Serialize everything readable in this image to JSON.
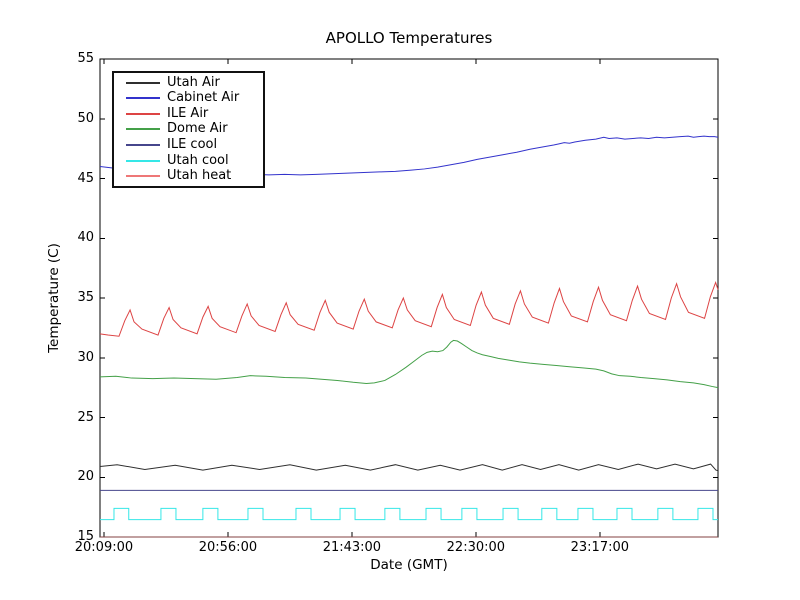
{
  "chart_data": {
    "type": "line",
    "title": "APOLLO Temperatures",
    "xlabel": "Date (GMT)",
    "ylabel": "Temperature (C)",
    "ylim": [
      15,
      55
    ],
    "y_ticks": [
      15,
      20,
      25,
      30,
      35,
      40,
      45,
      50,
      55
    ],
    "x_range_minutes": [
      0,
      234.3
    ],
    "x_ticks": [
      {
        "label": "20:09:00",
        "t": 1.5
      },
      {
        "label": "20:56:00",
        "t": 48.5
      },
      {
        "label": "21:43:00",
        "t": 95.5
      },
      {
        "label": "22:30:00",
        "t": 142.5
      },
      {
        "label": "23:17:00",
        "t": 189.5
      }
    ],
    "grid": false,
    "legend_position": "upper left",
    "axis_color": "#000000",
    "background": "#ffffff",
    "series": [
      {
        "name": "Utah Air",
        "color": "#2f2f2f",
        "points": [
          [
            0,
            20.9
          ],
          [
            6.5,
            21.05
          ],
          [
            17,
            20.65
          ],
          [
            28.5,
            21.0
          ],
          [
            39,
            20.6
          ],
          [
            50,
            21.0
          ],
          [
            60.5,
            20.65
          ],
          [
            72,
            21.05
          ],
          [
            82,
            20.6
          ],
          [
            93,
            21.0
          ],
          [
            102.5,
            20.6
          ],
          [
            112,
            21.05
          ],
          [
            120.5,
            20.6
          ],
          [
            129,
            21.0
          ],
          [
            136.5,
            20.6
          ],
          [
            145,
            21.05
          ],
          [
            152.5,
            20.6
          ],
          [
            160,
            21.05
          ],
          [
            167,
            20.65
          ],
          [
            174,
            21.05
          ],
          [
            181.5,
            20.6
          ],
          [
            189,
            21.05
          ],
          [
            196.5,
            20.65
          ],
          [
            204,
            21.1
          ],
          [
            211,
            20.7
          ],
          [
            218,
            21.1
          ],
          [
            225,
            20.7
          ],
          [
            231.5,
            21.1
          ],
          [
            233.5,
            20.6
          ],
          [
            234.3,
            20.55
          ]
        ]
      },
      {
        "name": "Cabinet Air",
        "color": "#3333cc",
        "points": [
          [
            0,
            46.0
          ],
          [
            6,
            45.85
          ],
          [
            12,
            45.75
          ],
          [
            20,
            45.65
          ],
          [
            28,
            45.55
          ],
          [
            36,
            45.5
          ],
          [
            44,
            45.45
          ],
          [
            52,
            45.4
          ],
          [
            58,
            45.35
          ],
          [
            64,
            45.3
          ],
          [
            70,
            45.35
          ],
          [
            76,
            45.3
          ],
          [
            82,
            45.35
          ],
          [
            88,
            45.4
          ],
          [
            94,
            45.45
          ],
          [
            100,
            45.5
          ],
          [
            106,
            45.55
          ],
          [
            112,
            45.6
          ],
          [
            118,
            45.7
          ],
          [
            123,
            45.8
          ],
          [
            128,
            45.95
          ],
          [
            133,
            46.15
          ],
          [
            138,
            46.35
          ],
          [
            143,
            46.6
          ],
          [
            148,
            46.8
          ],
          [
            153,
            47.0
          ],
          [
            158,
            47.2
          ],
          [
            163,
            47.45
          ],
          [
            168,
            47.65
          ],
          [
            172,
            47.8
          ],
          [
            174,
            47.9
          ],
          [
            176,
            48.0
          ],
          [
            178,
            47.95
          ],
          [
            180,
            48.05
          ],
          [
            184,
            48.2
          ],
          [
            188,
            48.3
          ],
          [
            191,
            48.45
          ],
          [
            193,
            48.35
          ],
          [
            196,
            48.4
          ],
          [
            199,
            48.3
          ],
          [
            202,
            48.35
          ],
          [
            205,
            48.4
          ],
          [
            208,
            48.35
          ],
          [
            211,
            48.45
          ],
          [
            214,
            48.4
          ],
          [
            217,
            48.45
          ],
          [
            220,
            48.5
          ],
          [
            223,
            48.55
          ],
          [
            225,
            48.45
          ],
          [
            227,
            48.5
          ],
          [
            229,
            48.55
          ],
          [
            231,
            48.5
          ],
          [
            233,
            48.5
          ],
          [
            234.3,
            48.45
          ]
        ]
      },
      {
        "name": "ILE Air",
        "color": "#dd4444",
        "points": [
          [
            0,
            32.0
          ],
          [
            3,
            31.9
          ],
          [
            7.2,
            31.8
          ],
          [
            9.4,
            33.1
          ],
          [
            11.4,
            34.0
          ],
          [
            12.9,
            33.0
          ],
          [
            15.9,
            32.4
          ],
          [
            22,
            31.9
          ],
          [
            24.2,
            33.3
          ],
          [
            26.2,
            34.2
          ],
          [
            27.7,
            33.2
          ],
          [
            30.7,
            32.5
          ],
          [
            36.8,
            32.0
          ],
          [
            39,
            33.4
          ],
          [
            41,
            34.3
          ],
          [
            42.5,
            33.3
          ],
          [
            45.5,
            32.6
          ],
          [
            51.6,
            32.1
          ],
          [
            53.8,
            33.5
          ],
          [
            55.8,
            34.5
          ],
          [
            57.3,
            33.5
          ],
          [
            60.3,
            32.7
          ],
          [
            66.4,
            32.2
          ],
          [
            68.6,
            33.6
          ],
          [
            70.6,
            34.6
          ],
          [
            72.1,
            33.6
          ],
          [
            75.1,
            32.8
          ],
          [
            81.2,
            32.3
          ],
          [
            83.4,
            33.8
          ],
          [
            85.4,
            34.8
          ],
          [
            86.9,
            33.8
          ],
          [
            89.9,
            32.9
          ],
          [
            96,
            32.4
          ],
          [
            98.2,
            33.9
          ],
          [
            100.2,
            34.9
          ],
          [
            101.7,
            33.9
          ],
          [
            104.7,
            33.0
          ],
          [
            110.8,
            32.5
          ],
          [
            113,
            34.0
          ],
          [
            115,
            35.0
          ],
          [
            116.5,
            34.0
          ],
          [
            119.5,
            33.1
          ],
          [
            125.6,
            32.6
          ],
          [
            127.8,
            34.2
          ],
          [
            129.8,
            35.3
          ],
          [
            131.3,
            34.2
          ],
          [
            134.3,
            33.2
          ],
          [
            140.4,
            32.7
          ],
          [
            142.6,
            34.4
          ],
          [
            144.6,
            35.5
          ],
          [
            146.1,
            34.4
          ],
          [
            149.1,
            33.3
          ],
          [
            155.2,
            32.8
          ],
          [
            157.4,
            34.5
          ],
          [
            159.4,
            35.6
          ],
          [
            160.9,
            34.5
          ],
          [
            163.9,
            33.4
          ],
          [
            170,
            32.9
          ],
          [
            172.2,
            34.6
          ],
          [
            174.2,
            35.8
          ],
          [
            175.7,
            34.7
          ],
          [
            178.7,
            33.5
          ],
          [
            184.8,
            33.0
          ],
          [
            187,
            34.7
          ],
          [
            189,
            35.9
          ],
          [
            190.5,
            34.8
          ],
          [
            193.5,
            33.6
          ],
          [
            199.6,
            33.1
          ],
          [
            201.8,
            34.8
          ],
          [
            203.8,
            36.0
          ],
          [
            205.3,
            34.9
          ],
          [
            208.3,
            33.7
          ],
          [
            214.4,
            33.2
          ],
          [
            216.6,
            35.0
          ],
          [
            218.6,
            36.2
          ],
          [
            220.1,
            35.1
          ],
          [
            223.1,
            33.8
          ],
          [
            229.2,
            33.3
          ],
          [
            231.4,
            35.1
          ],
          [
            233.4,
            36.3
          ],
          [
            234.3,
            35.7
          ]
        ]
      },
      {
        "name": "Dome Air",
        "color": "#44a048",
        "points": [
          [
            0,
            28.4
          ],
          [
            6,
            28.45
          ],
          [
            12,
            28.3
          ],
          [
            20,
            28.25
          ],
          [
            28,
            28.3
          ],
          [
            36,
            28.25
          ],
          [
            44,
            28.2
          ],
          [
            52,
            28.35
          ],
          [
            57,
            28.5
          ],
          [
            63,
            28.45
          ],
          [
            70,
            28.35
          ],
          [
            78,
            28.3
          ],
          [
            84,
            28.2
          ],
          [
            90,
            28.1
          ],
          [
            96,
            27.95
          ],
          [
            101,
            27.85
          ],
          [
            104,
            27.9
          ],
          [
            108,
            28.1
          ],
          [
            112,
            28.6
          ],
          [
            116,
            29.2
          ],
          [
            119,
            29.7
          ],
          [
            122,
            30.2
          ],
          [
            124,
            30.45
          ],
          [
            126,
            30.55
          ],
          [
            128,
            30.5
          ],
          [
            130,
            30.6
          ],
          [
            131.5,
            30.9
          ],
          [
            133,
            31.3
          ],
          [
            134,
            31.45
          ],
          [
            135.5,
            31.4
          ],
          [
            137,
            31.2
          ],
          [
            139,
            30.9
          ],
          [
            141,
            30.6
          ],
          [
            143,
            30.4
          ],
          [
            145,
            30.25
          ],
          [
            148,
            30.1
          ],
          [
            151,
            29.95
          ],
          [
            155,
            29.8
          ],
          [
            159,
            29.65
          ],
          [
            163,
            29.55
          ],
          [
            168,
            29.45
          ],
          [
            173,
            29.35
          ],
          [
            178,
            29.25
          ],
          [
            183,
            29.15
          ],
          [
            188,
            29.05
          ],
          [
            191,
            28.9
          ],
          [
            194,
            28.65
          ],
          [
            197,
            28.5
          ],
          [
            201,
            28.45
          ],
          [
            205,
            28.35
          ],
          [
            210,
            28.25
          ],
          [
            215,
            28.15
          ],
          [
            220,
            28.0
          ],
          [
            225,
            27.9
          ],
          [
            229,
            27.75
          ],
          [
            232,
            27.6
          ],
          [
            234.3,
            27.5
          ]
        ]
      },
      {
        "name": "ILE cool",
        "color": "#46468c",
        "points": [
          [
            0,
            18.9
          ],
          [
            234.3,
            18.9
          ]
        ]
      },
      {
        "name": "Utah cool",
        "color": "#35e7e7",
        "points": [
          [
            0,
            16.45
          ],
          [
            5.3,
            16.45
          ],
          [
            5.3,
            17.4
          ],
          [
            10.9,
            17.4
          ],
          [
            10.9,
            16.45
          ],
          [
            23.1,
            16.45
          ],
          [
            23.1,
            17.4
          ],
          [
            28.8,
            17.4
          ],
          [
            28.8,
            16.45
          ],
          [
            39.0,
            16.45
          ],
          [
            39.0,
            17.4
          ],
          [
            44.7,
            17.4
          ],
          [
            44.7,
            16.45
          ],
          [
            56.1,
            16.45
          ],
          [
            56.1,
            17.4
          ],
          [
            61.8,
            17.4
          ],
          [
            61.8,
            16.45
          ],
          [
            74.3,
            16.45
          ],
          [
            74.3,
            17.4
          ],
          [
            80.0,
            17.4
          ],
          [
            80.0,
            16.45
          ],
          [
            91.0,
            16.45
          ],
          [
            91.0,
            17.4
          ],
          [
            96.7,
            17.4
          ],
          [
            96.7,
            16.45
          ],
          [
            108.0,
            16.45
          ],
          [
            108.0,
            17.4
          ],
          [
            113.7,
            17.4
          ],
          [
            113.7,
            16.45
          ],
          [
            123.6,
            16.45
          ],
          [
            123.6,
            17.4
          ],
          [
            129.3,
            17.4
          ],
          [
            129.3,
            16.45
          ],
          [
            137.2,
            16.45
          ],
          [
            137.2,
            17.4
          ],
          [
            142.9,
            17.4
          ],
          [
            142.9,
            16.45
          ],
          [
            152.8,
            16.45
          ],
          [
            152.8,
            17.4
          ],
          [
            158.5,
            17.4
          ],
          [
            158.5,
            16.45
          ],
          [
            167.5,
            16.45
          ],
          [
            167.5,
            17.4
          ],
          [
            173.2,
            17.4
          ],
          [
            173.2,
            16.45
          ],
          [
            181.2,
            16.45
          ],
          [
            181.2,
            17.4
          ],
          [
            186.9,
            17.4
          ],
          [
            186.9,
            16.45
          ],
          [
            196.0,
            16.45
          ],
          [
            196.0,
            17.4
          ],
          [
            201.7,
            17.4
          ],
          [
            201.7,
            16.45
          ],
          [
            211.5,
            16.45
          ],
          [
            211.5,
            17.4
          ],
          [
            217.2,
            17.4
          ],
          [
            217.2,
            16.45
          ],
          [
            226.7,
            16.45
          ],
          [
            226.7,
            17.4
          ],
          [
            232.4,
            17.4
          ],
          [
            232.4,
            16.45
          ],
          [
            234.3,
            16.45
          ]
        ]
      },
      {
        "name": "Utah heat",
        "color": "#ee7777",
        "opacity": 0.55,
        "points": [
          [
            0,
            15.0
          ],
          [
            234.3,
            15.0
          ]
        ]
      }
    ]
  }
}
